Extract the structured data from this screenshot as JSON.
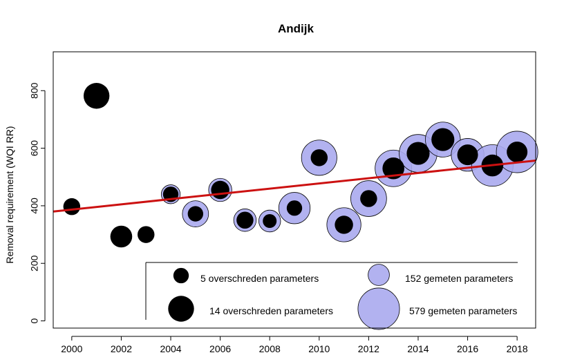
{
  "chart_data": {
    "type": "scatter",
    "title": "Andijk",
    "xlabel": "",
    "ylabel": "Removal requirement (WQI RR)",
    "xlim": [
      1999.25,
      2018.75
    ],
    "ylim": [
      -25,
      935
    ],
    "x_ticks": [
      2000,
      2002,
      2004,
      2006,
      2008,
      2010,
      2012,
      2014,
      2016,
      2018
    ],
    "y_ticks": [
      0,
      200,
      400,
      600,
      800
    ],
    "grid": false,
    "colors": {
      "measured_fill": "#aaaaee",
      "exceeded_fill": "#000000",
      "trend_line": "#cc1111"
    },
    "points": [
      {
        "year": 2000,
        "value": 397,
        "measured": 15,
        "exceeded": 6
      },
      {
        "year": 2001,
        "value": 782,
        "measured": 20,
        "exceeded": 14
      },
      {
        "year": 2002,
        "value": 293,
        "measured": 25,
        "exceeded": 10
      },
      {
        "year": 2003,
        "value": 300,
        "measured": 10,
        "exceeded": 6
      },
      {
        "year": 2004,
        "value": 440,
        "measured": 120,
        "exceeded": 5
      },
      {
        "year": 2005,
        "value": 372,
        "measured": 230,
        "exceeded": 5
      },
      {
        "year": 2006,
        "value": 455,
        "measured": 180,
        "exceeded": 7
      },
      {
        "year": 2007,
        "value": 350,
        "measured": 170,
        "exceeded": 6
      },
      {
        "year": 2008,
        "value": 347,
        "measured": 160,
        "exceeded": 4
      },
      {
        "year": 2009,
        "value": 392,
        "measured": 330,
        "exceeded": 5
      },
      {
        "year": 2010,
        "value": 567,
        "measured": 420,
        "exceeded": 6
      },
      {
        "year": 2011,
        "value": 334,
        "measured": 390,
        "exceeded": 7
      },
      {
        "year": 2012,
        "value": 425,
        "measured": 430,
        "exceeded": 6
      },
      {
        "year": 2013,
        "value": 530,
        "measured": 450,
        "exceeded": 10
      },
      {
        "year": 2014,
        "value": 582,
        "measured": 480,
        "exceeded": 11
      },
      {
        "year": 2015,
        "value": 630,
        "measured": 410,
        "exceeded": 11
      },
      {
        "year": 2016,
        "value": 577,
        "measured": 360,
        "exceeded": 9
      },
      {
        "year": 2017,
        "value": 540,
        "measured": 579,
        "exceeded": 10
      },
      {
        "year": 2018,
        "value": 587,
        "measured": 579,
        "exceeded": 9
      }
    ],
    "trend": {
      "x": [
        1999.25,
        2018.75
      ],
      "y": [
        380,
        557
      ]
    },
    "legend": {
      "position": "bottom-right",
      "items": [
        {
          "text": "5 overschreden parameters",
          "kind": "exceeded",
          "value": 5
        },
        {
          "text": "152 gemeten parameters",
          "kind": "measured",
          "value": 152
        },
        {
          "text": "14 overschreden parameters",
          "kind": "exceeded",
          "value": 14
        },
        {
          "text": "579 gemeten parameters",
          "kind": "measured",
          "value": 579
        }
      ]
    }
  }
}
